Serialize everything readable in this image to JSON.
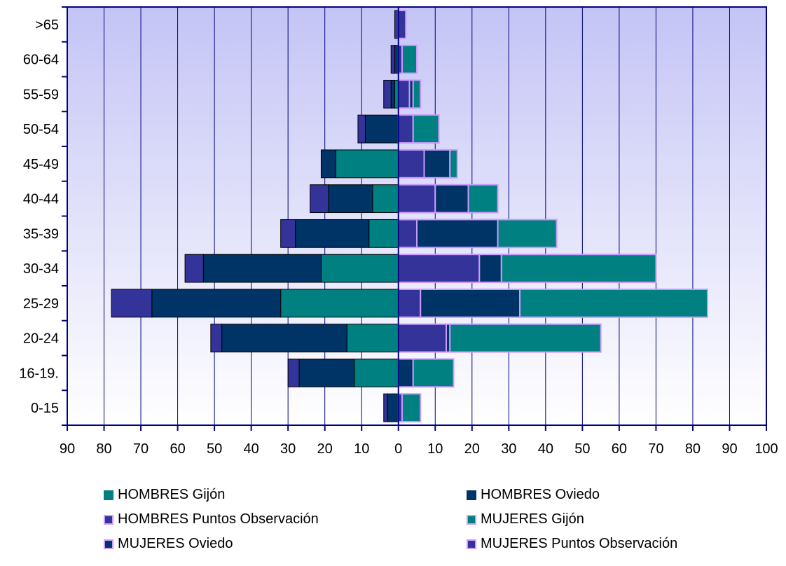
{
  "chart_data": {
    "type": "bar",
    "orientation": "horizontal",
    "layout": "population-pyramid-stacked",
    "categories": [
      "0-15",
      "16-19.",
      "20-24",
      "25-29",
      "30-34",
      "35-39",
      "40-44",
      "45-49",
      "50-54",
      "55-59",
      "60-64",
      ">65"
    ],
    "series": [
      {
        "name": "HOMBRES Gijón",
        "side": "left",
        "color": "#008080",
        "values": [
          0,
          12,
          14,
          32,
          21,
          8,
          7,
          17,
          0,
          1,
          0,
          0
        ]
      },
      {
        "name": "HOMBRES Oviedo",
        "side": "left",
        "color": "#003366",
        "values": [
          3,
          15,
          34,
          35,
          32,
          20,
          12,
          4,
          9,
          1,
          1,
          0
        ]
      },
      {
        "name": "HOMBRES Puntos Observación",
        "side": "left",
        "color": "#333399",
        "values": [
          1,
          3,
          3,
          11,
          5,
          4,
          5,
          0,
          2,
          2,
          1,
          1
        ]
      },
      {
        "name": "MUJERES Puntos Observación",
        "side": "right",
        "color": "#333399",
        "values": [
          1,
          0,
          13,
          6,
          22,
          5,
          10,
          7,
          4,
          3,
          1,
          2
        ]
      },
      {
        "name": "MUJERES Oviedo",
        "side": "right",
        "color": "#003366",
        "values": [
          0,
          4,
          1,
          27,
          6,
          22,
          9,
          7,
          0,
          1,
          0,
          0
        ]
      },
      {
        "name": "MUJERES Gijón",
        "side": "right",
        "color": "#008080",
        "values": [
          5,
          11,
          41,
          51,
          42,
          16,
          8,
          2,
          7,
          2,
          4,
          0
        ]
      }
    ],
    "x_ticks": [
      "90",
      "80",
      "70",
      "60",
      "50",
      "40",
      "30",
      "20",
      "10",
      "0",
      "10",
      "20",
      "30",
      "40",
      "50",
      "60",
      "70",
      "80",
      "90",
      "100"
    ],
    "xlim": [
      -90,
      100
    ],
    "grid": "vertical",
    "legend_position": "bottom",
    "legend": [
      {
        "label": "HOMBRES Gijón",
        "fill": "#008080",
        "border": "#008080"
      },
      {
        "label": "HOMBRES Oviedo",
        "fill": "#003366",
        "border": "#003366"
      },
      {
        "label": "HOMBRES Puntos Observación",
        "fill": "#333399",
        "border": "#cc99ff"
      },
      {
        "label": "MUJERES Gijón",
        "fill": "#008080",
        "border": "#cc99ff"
      },
      {
        "label": "MUJERES Oviedo",
        "fill": "#003366",
        "border": "#cc99ff"
      },
      {
        "label": "MUJERES Puntos Observación",
        "fill": "#333399",
        "border": "#cc99ff"
      }
    ],
    "colors": {
      "plot_top": "#c4c4f6",
      "plot_bottom": "#ffffff",
      "axis": "#000080",
      "grid": "#000080",
      "women_border": "#cc99ff",
      "men_border": "#000000"
    }
  }
}
